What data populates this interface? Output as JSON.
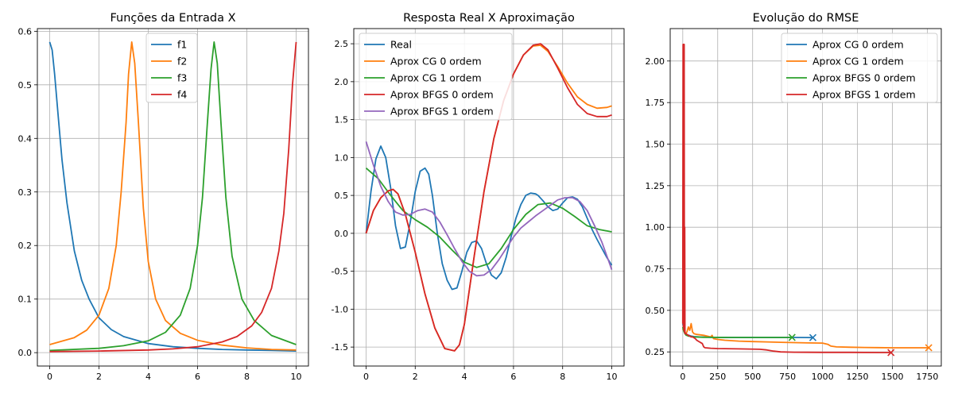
{
  "chart_data": [
    {
      "type": "line",
      "title": "Funções da Entrada X",
      "xlim": [
        -0.5,
        10.5
      ],
      "ylim": [
        -0.025,
        0.605
      ],
      "xticks": [
        0,
        2,
        4,
        6,
        8,
        10
      ],
      "yticks": [
        0.0,
        0.1,
        0.2,
        0.3,
        0.4,
        0.5,
        0.6
      ],
      "grid": true,
      "legend": "top-center",
      "series": [
        {
          "name": "f1",
          "color": "#1f77b4",
          "x": [
            0,
            0.1,
            0.2,
            0.35,
            0.5,
            0.7,
            1.0,
            1.3,
            1.6,
            2.0,
            2.5,
            3.0,
            4.0,
            5.0,
            6.0,
            7.0,
            8.0,
            9.0,
            10.0
          ],
          "y": [
            0.58,
            0.565,
            0.52,
            0.44,
            0.36,
            0.28,
            0.19,
            0.135,
            0.1,
            0.065,
            0.043,
            0.03,
            0.017,
            0.011,
            0.008,
            0.006,
            0.005,
            0.004,
            0.003
          ]
        },
        {
          "name": "f2",
          "color": "#ff7f0e",
          "x": [
            0,
            1.0,
            1.5,
            2.0,
            2.4,
            2.7,
            2.9,
            3.1,
            3.2,
            3.33,
            3.45,
            3.6,
            3.8,
            4.0,
            4.3,
            4.7,
            5.3,
            6.0,
            7.0,
            8.0,
            9.0,
            10.0
          ],
          "y": [
            0.015,
            0.028,
            0.042,
            0.07,
            0.12,
            0.2,
            0.3,
            0.43,
            0.52,
            0.58,
            0.54,
            0.43,
            0.27,
            0.17,
            0.1,
            0.06,
            0.036,
            0.023,
            0.014,
            0.009,
            0.006,
            0.005
          ]
        },
        {
          "name": "f3",
          "color": "#2ca02c",
          "x": [
            0,
            2.0,
            3.0,
            4.0,
            4.7,
            5.3,
            5.7,
            6.0,
            6.2,
            6.4,
            6.55,
            6.67,
            6.8,
            6.95,
            7.15,
            7.4,
            7.8,
            8.3,
            9.0,
            10.0
          ],
          "y": [
            0.004,
            0.008,
            0.013,
            0.022,
            0.038,
            0.07,
            0.12,
            0.2,
            0.29,
            0.43,
            0.53,
            0.58,
            0.54,
            0.43,
            0.29,
            0.18,
            0.1,
            0.06,
            0.032,
            0.015
          ]
        },
        {
          "name": "f4",
          "color": "#d62728",
          "x": [
            0,
            2.0,
            4.0,
            5.0,
            6.0,
            7.0,
            7.6,
            8.2,
            8.6,
            9.0,
            9.3,
            9.5,
            9.7,
            9.85,
            10.0
          ],
          "y": [
            0.002,
            0.003,
            0.005,
            0.007,
            0.011,
            0.02,
            0.03,
            0.05,
            0.075,
            0.12,
            0.19,
            0.26,
            0.38,
            0.5,
            0.58
          ]
        }
      ]
    },
    {
      "type": "line",
      "title": "Resposta Real X Aproximação",
      "xlim": [
        -0.5,
        10.5
      ],
      "ylim": [
        -1.75,
        2.7
      ],
      "xticks": [
        0,
        2,
        4,
        6,
        8,
        10
      ],
      "yticks": [
        -1.5,
        -1.0,
        -0.5,
        0.0,
        0.5,
        1.0,
        1.5,
        2.0,
        2.5
      ],
      "grid": true,
      "legend": "top-left",
      "series": [
        {
          "name": "Real",
          "color": "#1f77b4",
          "x": [
            0,
            0.2,
            0.4,
            0.6,
            0.8,
            1.0,
            1.2,
            1.4,
            1.6,
            1.8,
            2.0,
            2.2,
            2.4,
            2.55,
            2.7,
            2.9,
            3.1,
            3.3,
            3.5,
            3.7,
            3.9,
            4.1,
            4.3,
            4.5,
            4.7,
            4.9,
            5.1,
            5.3,
            5.5,
            5.7,
            5.9,
            6.1,
            6.3,
            6.5,
            6.7,
            6.9,
            7.0,
            7.2,
            7.4,
            7.6,
            7.8,
            8.0,
            8.2,
            8.4,
            8.6,
            8.8,
            9.0,
            9.2,
            9.4,
            9.6,
            9.8,
            10.0
          ],
          "y": [
            0.0,
            0.55,
            0.98,
            1.15,
            1.0,
            0.6,
            0.1,
            -0.2,
            -0.18,
            0.15,
            0.55,
            0.82,
            0.86,
            0.78,
            0.5,
            0.0,
            -0.4,
            -0.62,
            -0.74,
            -0.72,
            -0.5,
            -0.25,
            -0.12,
            -0.1,
            -0.2,
            -0.4,
            -0.55,
            -0.6,
            -0.52,
            -0.32,
            -0.05,
            0.2,
            0.38,
            0.5,
            0.53,
            0.52,
            0.5,
            0.43,
            0.35,
            0.3,
            0.32,
            0.4,
            0.47,
            0.48,
            0.45,
            0.35,
            0.2,
            0.05,
            -0.08,
            -0.2,
            -0.32,
            -0.42
          ]
        },
        {
          "name": "Aprox CG 0 ordem",
          "color": "#ff7f0e",
          "x": [
            0,
            0.3,
            0.6,
            0.9,
            1.1,
            1.3,
            1.6,
            2.0,
            2.4,
            2.8,
            3.2,
            3.6,
            3.8,
            4.0,
            4.4,
            4.8,
            5.2,
            5.6,
            6.0,
            6.4,
            6.8,
            7.1,
            7.4,
            7.8,
            8.2,
            8.6,
            9.0,
            9.4,
            9.8,
            10.0
          ],
          "y": [
            0.0,
            0.3,
            0.47,
            0.56,
            0.58,
            0.52,
            0.25,
            -0.25,
            -0.8,
            -1.25,
            -1.52,
            -1.55,
            -1.47,
            -1.2,
            -0.3,
            0.55,
            1.25,
            1.75,
            2.1,
            2.35,
            2.47,
            2.48,
            2.4,
            2.2,
            1.98,
            1.8,
            1.7,
            1.65,
            1.66,
            1.68
          ]
        },
        {
          "name": "Aprox CG 1 ordem",
          "color": "#2ca02c",
          "x": [
            0,
            0.5,
            1.0,
            1.5,
            2.0,
            2.5,
            3.0,
            3.5,
            4.0,
            4.5,
            5.0,
            5.5,
            6.0,
            6.5,
            7.0,
            7.5,
            8.0,
            8.5,
            9.0,
            9.5,
            10.0
          ],
          "y": [
            0.86,
            0.72,
            0.5,
            0.3,
            0.18,
            0.08,
            -0.05,
            -0.22,
            -0.38,
            -0.45,
            -0.4,
            -0.2,
            0.05,
            0.25,
            0.38,
            0.4,
            0.33,
            0.22,
            0.1,
            0.05,
            0.02
          ]
        },
        {
          "name": "Aprox BFGS 0 ordem",
          "color": "#d62728",
          "x": [
            0,
            0.3,
            0.6,
            0.9,
            1.1,
            1.3,
            1.6,
            2.0,
            2.4,
            2.8,
            3.2,
            3.6,
            3.8,
            4.0,
            4.4,
            4.8,
            5.2,
            5.6,
            6.0,
            6.4,
            6.8,
            7.1,
            7.4,
            7.8,
            8.2,
            8.6,
            9.0,
            9.4,
            9.8,
            10.0
          ],
          "y": [
            0.0,
            0.3,
            0.47,
            0.56,
            0.58,
            0.52,
            0.25,
            -0.25,
            -0.8,
            -1.25,
            -1.52,
            -1.55,
            -1.47,
            -1.2,
            -0.3,
            0.55,
            1.25,
            1.75,
            2.1,
            2.35,
            2.48,
            2.5,
            2.42,
            2.18,
            1.92,
            1.7,
            1.58,
            1.54,
            1.54,
            1.56
          ]
        },
        {
          "name": "Aprox BFGS 1 ordem",
          "color": "#9467bd",
          "x": [
            0,
            0.3,
            0.6,
            0.9,
            1.2,
            1.5,
            1.8,
            2.1,
            2.4,
            2.7,
            3.0,
            3.3,
            3.6,
            3.9,
            4.2,
            4.5,
            4.8,
            5.1,
            5.4,
            5.7,
            6.0,
            6.3,
            6.6,
            6.9,
            7.2,
            7.5,
            7.8,
            8.1,
            8.4,
            8.7,
            9.0,
            9.3,
            9.6,
            9.8,
            10.0
          ],
          "y": [
            1.21,
            0.9,
            0.62,
            0.42,
            0.28,
            0.24,
            0.25,
            0.3,
            0.32,
            0.28,
            0.15,
            -0.02,
            -0.2,
            -0.37,
            -0.5,
            -0.56,
            -0.55,
            -0.48,
            -0.35,
            -0.2,
            -0.05,
            0.07,
            0.15,
            0.23,
            0.3,
            0.37,
            0.44,
            0.47,
            0.47,
            0.42,
            0.3,
            0.1,
            -0.12,
            -0.3,
            -0.48
          ]
        }
      ]
    },
    {
      "type": "line",
      "title": "Evolução do RMSE",
      "xlim": [
        -90,
        1850
      ],
      "ylim": [
        0.165,
        2.195
      ],
      "xticks": [
        0,
        250,
        500,
        750,
        1000,
        1250,
        1500,
        1750
      ],
      "yticks": [
        0.25,
        0.5,
        0.75,
        1.0,
        1.25,
        1.5,
        1.75,
        2.0
      ],
      "grid": true,
      "legend": "top-right",
      "series": [
        {
          "name": "Aprox CG 0 ordem",
          "color": "#1f77b4",
          "x": [
            0,
            5,
            10,
            15,
            20,
            30,
            45,
            60,
            80,
            120,
            200,
            400,
            600,
            800,
            931
          ],
          "y": [
            0.42,
            0.4,
            0.38,
            0.37,
            0.36,
            0.35,
            0.35,
            0.345,
            0.342,
            0.34,
            0.338,
            0.337,
            0.337,
            0.337,
            0.336
          ],
          "end": [
            931,
            0.336
          ]
        },
        {
          "name": "Aprox CG 1 ordem",
          "color": "#ff7f0e",
          "x": [
            0,
            10,
            20,
            30,
            40,
            50,
            60,
            70,
            80,
            100,
            150,
            200,
            210,
            220,
            250,
            300,
            400,
            500,
            600,
            700,
            800,
            900,
            1000,
            1040,
            1060,
            1100,
            1200,
            1300,
            1400,
            1500,
            1600,
            1700,
            1760
          ],
          "y": [
            0.39,
            0.37,
            0.36,
            0.37,
            0.4,
            0.38,
            0.42,
            0.37,
            0.36,
            0.355,
            0.35,
            0.34,
            0.35,
            0.33,
            0.325,
            0.32,
            0.315,
            0.312,
            0.31,
            0.308,
            0.306,
            0.304,
            0.303,
            0.295,
            0.285,
            0.28,
            0.278,
            0.277,
            0.276,
            0.275,
            0.275,
            0.275,
            0.275
          ],
          "end": [
            1760,
            0.275
          ]
        },
        {
          "name": "Aprox BFGS 0 ordem",
          "color": "#2ca02c",
          "x": [
            0,
            5,
            10,
            15,
            20,
            25,
            30,
            40,
            50,
            60,
            80,
            150,
            300,
            500,
            700,
            782
          ],
          "y": [
            0.4,
            0.38,
            0.37,
            0.36,
            0.355,
            0.35,
            0.35,
            0.345,
            0.345,
            0.342,
            0.34,
            0.338,
            0.337,
            0.337,
            0.337,
            0.337
          ],
          "end": [
            782,
            0.337
          ]
        },
        {
          "name": "Aprox BFGS 1 ordem",
          "color": "#d62728",
          "x": [
            0,
            2,
            4,
            6,
            8,
            10,
            12,
            14,
            16,
            20,
            25,
            30,
            40,
            50,
            60,
            70,
            80,
            90,
            100,
            110,
            120,
            130,
            140,
            150,
            160,
            200,
            250,
            400,
            550,
            600,
            650,
            700,
            800,
            1000,
            1200,
            1400,
            1490
          ],
          "y": [
            0.42,
            2.1,
            0.4,
            2.1,
            0.38,
            2.1,
            0.37,
            1.0,
            0.36,
            0.36,
            0.36,
            0.355,
            0.35,
            0.345,
            0.34,
            0.34,
            0.335,
            0.33,
            0.32,
            0.315,
            0.31,
            0.305,
            0.3,
            0.28,
            0.275,
            0.272,
            0.27,
            0.268,
            0.266,
            0.262,
            0.255,
            0.25,
            0.248,
            0.247,
            0.247,
            0.246,
            0.246
          ],
          "end": [
            1490,
            0.246
          ]
        }
      ]
    }
  ]
}
